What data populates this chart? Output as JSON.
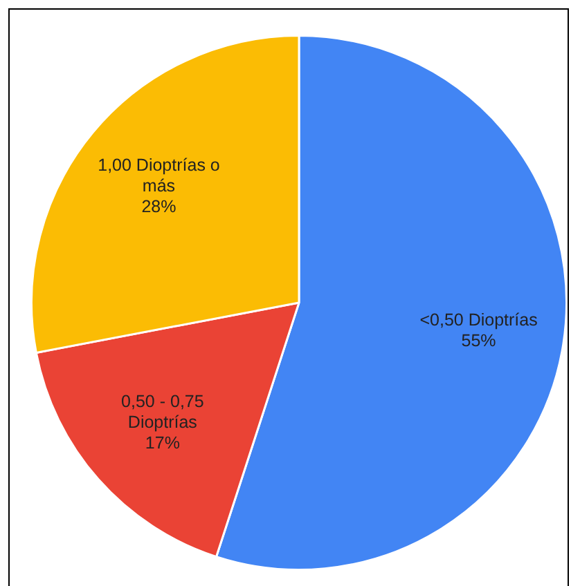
{
  "chart_data": {
    "type": "pie",
    "categories": [
      "<0,50 Dioptrías",
      "0,50 - 0,75 Dioptrías",
      "1,00 Dioptrías o más"
    ],
    "values": [
      55,
      17,
      28
    ],
    "value_labels": [
      "55%",
      "17%",
      "28%"
    ],
    "colors": [
      "#4285f4",
      "#ea4335",
      "#fbbc04"
    ],
    "legend": false
  }
}
